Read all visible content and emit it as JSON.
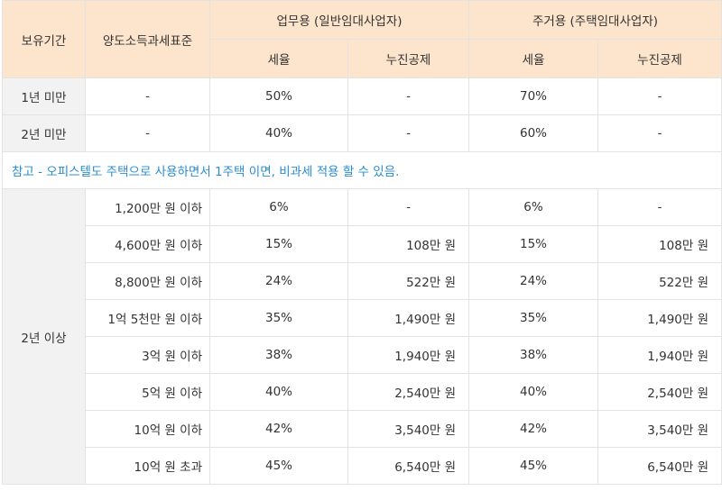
{
  "headers": {
    "period": "보유기간",
    "standard": "양도소득과세표준",
    "business": "업무용 (일반임대사업자)",
    "residential": "주거용 (주택임대사업자)",
    "rate": "세율",
    "deduction": "누진공제"
  },
  "short_rows": [
    {
      "period": "1년 미만",
      "standard": "-",
      "biz_rate": "50%",
      "biz_deduction": "-",
      "res_rate": "70%",
      "res_deduction": "-"
    },
    {
      "period": "2년 미만",
      "standard": "-",
      "biz_rate": "40%",
      "biz_deduction": "-",
      "res_rate": "60%",
      "res_deduction": "-"
    }
  ],
  "note": "참고 - 오피스텔도 주택으로 사용하면서 1주택 이면, 비과세 적용 할 수 있음.",
  "long_period": "2년 이상",
  "long_rows": [
    {
      "standard": "1,200만 원 이하",
      "biz_rate": "6%",
      "biz_deduction": "-",
      "res_rate": "6%",
      "res_deduction": "-"
    },
    {
      "standard": "4,600만 원 이하",
      "biz_rate": "15%",
      "biz_deduction": "108만 원",
      "res_rate": "15%",
      "res_deduction": "108만 원"
    },
    {
      "standard": "8,800만 원 이하",
      "biz_rate": "24%",
      "biz_deduction": "522만 원",
      "res_rate": "24%",
      "res_deduction": "522만 원"
    },
    {
      "standard": "1억 5천만 원 이하",
      "biz_rate": "35%",
      "biz_deduction": "1,490만 원",
      "res_rate": "35%",
      "res_deduction": "1,490만 원"
    },
    {
      "standard": "3억 원 이하",
      "biz_rate": "38%",
      "biz_deduction": "1,940만 원",
      "res_rate": "38%",
      "res_deduction": "1,940만 원"
    },
    {
      "standard": "5억 원 이하",
      "biz_rate": "40%",
      "biz_deduction": "2,540만 원",
      "res_rate": "40%",
      "res_deduction": "2,540만 원"
    },
    {
      "standard": "10억 원 이하",
      "biz_rate": "42%",
      "biz_deduction": "3,540만 원",
      "res_rate": "42%",
      "res_deduction": "3,540만 원"
    },
    {
      "standard": "10억 원 초과",
      "biz_rate": "45%",
      "biz_deduction": "6,540만 원",
      "res_rate": "45%",
      "res_deduction": "6,540만 원"
    }
  ],
  "colors": {
    "header_bg": "#fde4cc",
    "label_bg": "#f2f2f2",
    "note_text": "#2a8ccf"
  }
}
